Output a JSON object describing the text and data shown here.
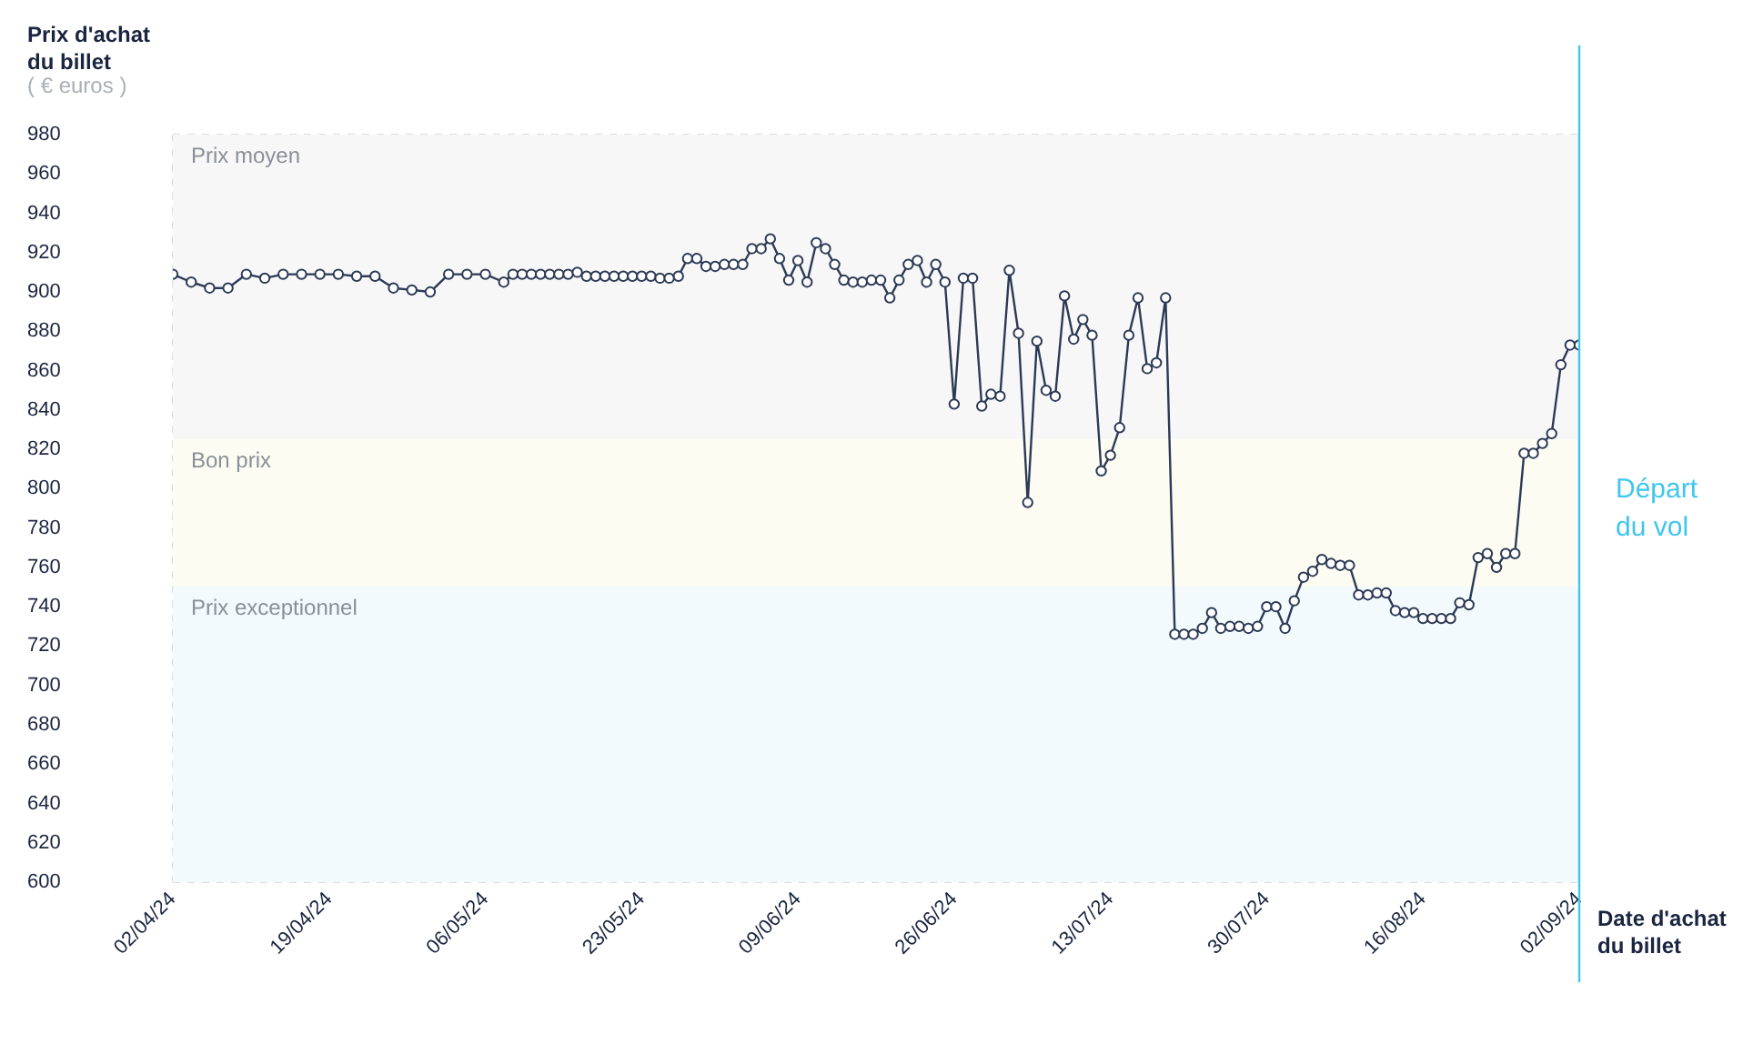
{
  "chart_data": {
    "type": "line",
    "ylabel": "Prix d'achat du billet",
    "xlabel": "Date d'achat du billet",
    "annotations": [
      "( € euros )"
    ],
    "x": [
      "2024-04-02",
      "2024-04-04",
      "2024-04-06",
      "2024-04-08",
      "2024-04-10",
      "2024-04-12",
      "2024-04-14",
      "2024-04-16",
      "2024-04-18",
      "2024-04-20",
      "2024-04-22",
      "2024-04-24",
      "2024-04-26",
      "2024-04-28",
      "2024-04-30",
      "2024-05-02",
      "2024-05-04",
      "2024-05-06",
      "2024-05-08",
      "2024-05-09",
      "2024-05-10",
      "2024-05-11",
      "2024-05-12",
      "2024-05-13",
      "2024-05-14",
      "2024-05-15",
      "2024-05-16",
      "2024-05-17",
      "2024-05-18",
      "2024-05-19",
      "2024-05-20",
      "2024-05-21",
      "2024-05-22",
      "2024-05-23",
      "2024-05-24",
      "2024-05-25",
      "2024-05-26",
      "2024-05-27",
      "2024-05-28",
      "2024-05-29",
      "2024-05-30",
      "2024-05-31",
      "2024-06-01",
      "2024-06-02",
      "2024-06-03",
      "2024-06-04",
      "2024-06-05",
      "2024-06-06",
      "2024-06-07",
      "2024-06-08",
      "2024-06-09",
      "2024-06-10",
      "2024-06-11",
      "2024-06-12",
      "2024-06-13",
      "2024-06-14",
      "2024-06-15",
      "2024-06-16",
      "2024-06-17",
      "2024-06-18",
      "2024-06-19",
      "2024-06-20",
      "2024-06-21",
      "2024-06-22",
      "2024-06-23",
      "2024-06-24",
      "2024-06-25",
      "2024-06-26",
      "2024-06-27",
      "2024-06-28",
      "2024-06-29",
      "2024-06-30",
      "2024-07-01",
      "2024-07-02",
      "2024-07-03",
      "2024-07-04",
      "2024-07-05",
      "2024-07-06",
      "2024-07-07",
      "2024-07-08",
      "2024-07-09",
      "2024-07-10",
      "2024-07-11",
      "2024-07-12",
      "2024-07-13",
      "2024-07-14",
      "2024-07-15",
      "2024-07-16",
      "2024-07-17",
      "2024-07-18",
      "2024-07-19",
      "2024-07-20",
      "2024-07-21",
      "2024-07-22",
      "2024-07-23",
      "2024-07-24",
      "2024-07-25",
      "2024-07-26",
      "2024-07-27",
      "2024-07-28",
      "2024-07-29",
      "2024-07-30",
      "2024-07-31",
      "2024-08-01",
      "2024-08-02",
      "2024-08-03",
      "2024-08-04",
      "2024-08-05",
      "2024-08-06",
      "2024-08-07",
      "2024-08-08",
      "2024-08-09",
      "2024-08-10",
      "2024-08-11",
      "2024-08-12",
      "2024-08-13",
      "2024-08-14",
      "2024-08-15",
      "2024-08-16",
      "2024-08-17",
      "2024-08-18",
      "2024-08-19",
      "2024-08-20",
      "2024-08-21",
      "2024-08-22",
      "2024-08-23",
      "2024-08-24",
      "2024-08-25",
      "2024-08-26",
      "2024-08-27",
      "2024-08-28",
      "2024-08-29",
      "2024-08-30",
      "2024-08-31",
      "2024-09-01",
      "2024-09-02"
    ],
    "series": [
      {
        "color": "#2d3a55",
        "values": [
          909,
          905,
          902,
          902,
          909,
          907,
          909,
          909,
          909,
          909,
          908,
          908,
          902,
          901,
          900,
          909,
          909,
          909,
          905,
          909,
          909,
          909,
          909,
          909,
          909,
          909,
          910,
          908,
          908,
          908,
          908,
          908,
          908,
          908,
          908,
          907,
          907,
          908,
          917,
          917,
          913,
          913,
          914,
          914,
          914,
          922,
          922,
          927,
          917,
          906,
          916,
          905,
          925,
          922,
          914,
          906,
          905,
          905,
          906,
          906,
          897,
          906,
          914,
          916,
          905,
          914,
          905,
          843,
          907,
          907,
          842,
          848,
          847,
          911,
          879,
          793,
          875,
          850,
          847,
          898,
          876,
          886,
          878,
          809,
          817,
          831,
          878,
          897,
          861,
          864,
          897,
          726,
          726,
          726,
          729,
          737,
          729,
          730,
          730,
          729,
          730,
          740,
          740,
          729,
          743,
          755,
          758,
          764,
          762,
          761,
          761,
          746,
          746,
          747,
          747,
          738,
          737,
          737,
          734,
          734,
          734,
          734,
          742,
          741,
          765,
          767,
          760,
          767,
          767,
          818,
          818,
          823,
          828,
          863,
          873,
          873
        ]
      }
    ],
    "xlim": [
      "2024-04-02",
      "2024-09-02"
    ],
    "xticks": [
      {
        "value": "2024-04-02",
        "label": "02/04/24"
      },
      {
        "value": "2024-04-19",
        "label": "19/04/24"
      },
      {
        "value": "2024-05-06",
        "label": "06/05/24"
      },
      {
        "value": "2024-05-23",
        "label": "23/05/24"
      },
      {
        "value": "2024-06-09",
        "label": "09/06/24"
      },
      {
        "value": "2024-06-26",
        "label": "26/06/24"
      },
      {
        "value": "2024-07-13",
        "label": "13/07/24"
      },
      {
        "value": "2024-07-30",
        "label": "30/07/24"
      },
      {
        "value": "2024-08-16",
        "label": "16/08/24"
      },
      {
        "value": "2024-09-02",
        "label": "02/09/24"
      }
    ],
    "ylim": [
      600,
      980
    ],
    "yticks": [
      600,
      620,
      640,
      660,
      680,
      700,
      720,
      740,
      760,
      780,
      800,
      820,
      840,
      860,
      880,
      900,
      920,
      940,
      960,
      980
    ],
    "bands": [
      {
        "axis": "y",
        "from": 825,
        "to": 980,
        "label": "Prix moyen",
        "color": "#f7f7f8"
      },
      {
        "axis": "y",
        "from": 750,
        "to": 825,
        "label": "Bon prix",
        "color": "#fcfcf2"
      },
      {
        "axis": "y",
        "from": 600,
        "to": 750,
        "label": "Prix exceptionnel",
        "color": "#f2fafd"
      }
    ],
    "ref_lines": [
      {
        "axis": "x",
        "value": "2024-09-02",
        "label": "Départ du vol",
        "color": "#3fc6ee"
      }
    ],
    "grid": true,
    "legend": false,
    "marker": "circle",
    "line_style": "solid"
  }
}
